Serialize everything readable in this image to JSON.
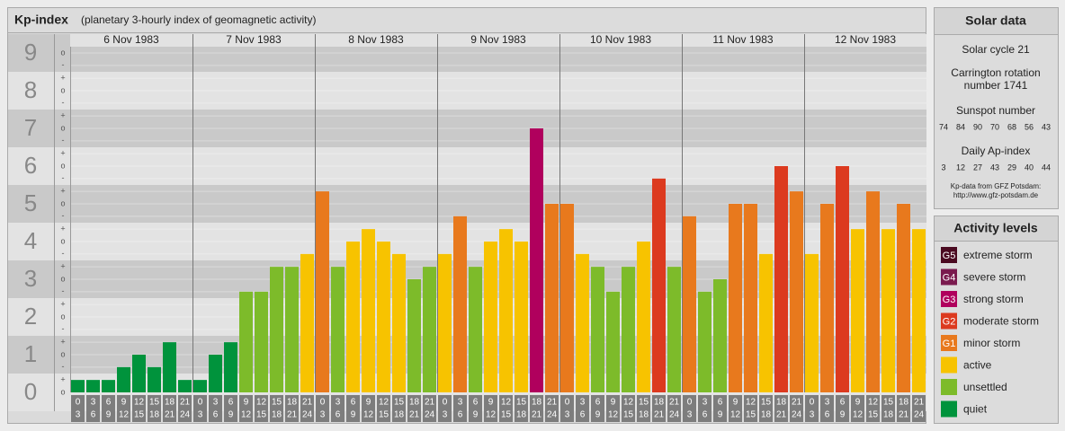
{
  "chart_data": {
    "type": "bar",
    "title": "Kp-index",
    "subtitle": "(planetary 3-hourly index of geomagnetic activity)",
    "interval_start": [
      0,
      3,
      6,
      9,
      12,
      15,
      18,
      21
    ],
    "interval_end": [
      3,
      6,
      9,
      12,
      15,
      18,
      21,
      24
    ],
    "series": [
      {
        "name": "6 Nov 1983",
        "values": [
          0.33,
          0.33,
          0.33,
          0.67,
          1,
          0.67,
          1.33,
          0.33
        ],
        "colors": [
          "#00933c",
          "#00933c",
          "#00933c",
          "#00933c",
          "#00933c",
          "#00933c",
          "#00933c",
          "#00933c"
        ]
      },
      {
        "name": "7 Nov 1983",
        "values": [
          0.33,
          1,
          1.33,
          2.67,
          2.67,
          3.33,
          3.33,
          3.67
        ],
        "colors": [
          "#00933c",
          "#00933c",
          "#00933c",
          "#7dbb2a",
          "#7dbb2a",
          "#7dbb2a",
          "#7dbb2a",
          "#f7c300"
        ]
      },
      {
        "name": "8 Nov 1983",
        "values": [
          5.33,
          3.33,
          4,
          4.33,
          4,
          3.67,
          3,
          3.33
        ],
        "colors": [
          "#e8791d",
          "#7dbb2a",
          "#f7c300",
          "#f7c300",
          "#f7c300",
          "#f7c300",
          "#7dbb2a",
          "#7dbb2a"
        ]
      },
      {
        "name": "9 Nov 1983",
        "values": [
          3.67,
          4.67,
          3.33,
          4,
          4.33,
          4,
          7,
          5
        ],
        "colors": [
          "#f7c300",
          "#e8791d",
          "#7dbb2a",
          "#f7c300",
          "#f7c300",
          "#f7c300",
          "#b0005d",
          "#e8791d"
        ]
      },
      {
        "name": "10 Nov 1983",
        "values": [
          5,
          3.67,
          3.33,
          2.67,
          3.33,
          4,
          5.67,
          3.33
        ],
        "colors": [
          "#e8791d",
          "#f7c300",
          "#7dbb2a",
          "#7dbb2a",
          "#7dbb2a",
          "#f7c300",
          "#dc3a1f",
          "#7dbb2a"
        ]
      },
      {
        "name": "11 Nov 1983",
        "values": [
          4.67,
          2.67,
          3,
          5,
          5,
          3.67,
          6,
          5.33
        ],
        "colors": [
          "#e8791d",
          "#7dbb2a",
          "#7dbb2a",
          "#e8791d",
          "#e8791d",
          "#f7c300",
          "#dc3a1f",
          "#e8791d"
        ]
      },
      {
        "name": "12 Nov 1983",
        "values": [
          3.67,
          5,
          6,
          4.33,
          5.33,
          4.33,
          5,
          4.33
        ],
        "colors": [
          "#f7c300",
          "#e8791d",
          "#dc3a1f",
          "#f7c300",
          "#e8791d",
          "#f7c300",
          "#e8791d",
          "#f7c300"
        ]
      }
    ],
    "ylim": [
      0,
      9.5
    ],
    "yticks": [
      0,
      1,
      2,
      3,
      4,
      5,
      6,
      7,
      8,
      9
    ],
    "minor_ticks": [
      {
        "value": 9,
        "label": "o"
      },
      {
        "value": 8.67,
        "label": "-"
      },
      {
        "value": 8.33,
        "label": "+"
      },
      {
        "value": 8,
        "label": "o"
      },
      {
        "value": 7.67,
        "label": "-"
      },
      {
        "value": 7.33,
        "label": "+"
      },
      {
        "value": 7,
        "label": "o"
      },
      {
        "value": 6.67,
        "label": "-"
      },
      {
        "value": 6.33,
        "label": "+"
      },
      {
        "value": 6,
        "label": "o"
      },
      {
        "value": 5.67,
        "label": "-"
      },
      {
        "value": 5.33,
        "label": "+"
      },
      {
        "value": 5,
        "label": "o"
      },
      {
        "value": 4.67,
        "label": "-"
      },
      {
        "value": 4.33,
        "label": "+"
      },
      {
        "value": 4,
        "label": "o"
      },
      {
        "value": 3.67,
        "label": "-"
      },
      {
        "value": 3.33,
        "label": "+"
      },
      {
        "value": 3,
        "label": "o"
      },
      {
        "value": 2.67,
        "label": "-"
      },
      {
        "value": 2.33,
        "label": "+"
      },
      {
        "value": 2,
        "label": "o"
      },
      {
        "value": 1.67,
        "label": "-"
      },
      {
        "value": 1.33,
        "label": "+"
      },
      {
        "value": 1,
        "label": "o"
      },
      {
        "value": 0.67,
        "label": "-"
      },
      {
        "value": 0.33,
        "label": "+"
      },
      {
        "value": 0,
        "label": "o"
      }
    ]
  },
  "solar_data": {
    "title": "Solar data",
    "cycle": "Solar cycle 21",
    "rotation": [
      "Carrington rotation",
      "number 1741"
    ],
    "sunspot_label": "Sunspot number",
    "sunspot": [
      74,
      84,
      90,
      70,
      68,
      56,
      43
    ],
    "ap_label": "Daily Ap-index",
    "ap": [
      3,
      12,
      27,
      43,
      29,
      40,
      44
    ],
    "source": [
      "Kp-data from GFZ Potsdam:",
      "http://www.gfz-potsdam.de"
    ]
  },
  "activity_levels": {
    "title": "Activity levels",
    "items": [
      {
        "badge": "G5",
        "name": "extreme storm",
        "color": "#4a0a20"
      },
      {
        "badge": "G4",
        "name": "severe storm",
        "color": "#7a1a4e"
      },
      {
        "badge": "G3",
        "name": "strong storm",
        "color": "#b0005d"
      },
      {
        "badge": "G2",
        "name": "moderate storm",
        "color": "#dc3a1f"
      },
      {
        "badge": "G1",
        "name": "minor storm",
        "color": "#e8791d"
      },
      {
        "name": "active",
        "color": "#f7c300"
      },
      {
        "name": "unsettled",
        "color": "#7dbb2a"
      },
      {
        "name": "quiet",
        "color": "#00933c"
      }
    ]
  }
}
